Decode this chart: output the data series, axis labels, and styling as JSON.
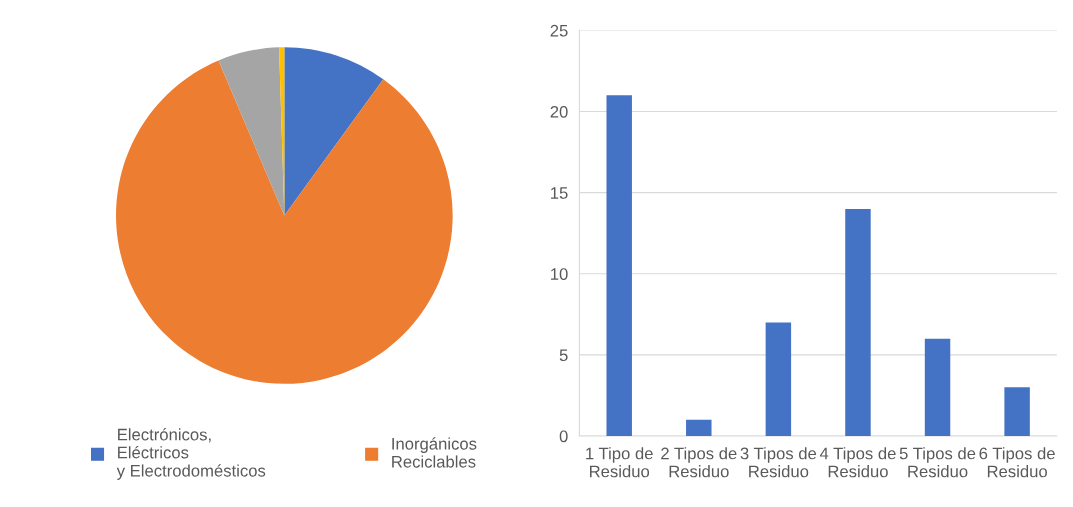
{
  "chart_data": [
    {
      "type": "pie",
      "categories": [
        "Electrónicos,\nEléctricos\ny Electrodomésticos",
        "Inorgánicos\nReciclables",
        null,
        null
      ],
      "values": [
        10.0,
        83.6,
        5.9,
        0.5
      ],
      "colors": [
        "#4472c4",
        "#ed7d31",
        "#a5a5a5",
        "#ffc000"
      ],
      "legend": "bottom"
    },
    {
      "type": "bar",
      "categories": [
        "1 Tipo de\nResiduo",
        "2 Tipos de\nResiduo",
        "3 Tipos de\nResiduo",
        "4 Tipos de\nResiduo",
        "5 Tipos de\nResiduo",
        "6 Tipos de\nResiduo"
      ],
      "values": [
        21,
        1,
        7,
        14,
        6,
        3
      ],
      "color": "#4472c4",
      "ylim": [
        0,
        25
      ],
      "yticks": [
        0,
        5,
        10,
        15,
        20,
        25
      ],
      "grid": "y"
    }
  ]
}
